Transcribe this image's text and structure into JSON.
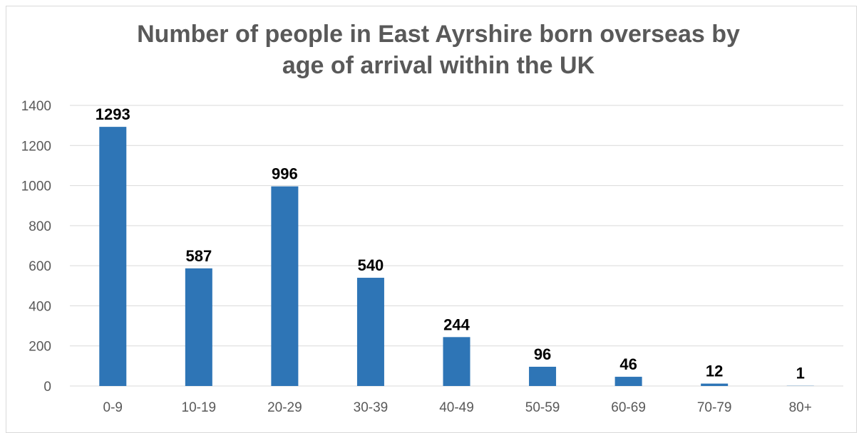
{
  "chart_data": {
    "type": "bar",
    "title_lines": [
      "Number of people in East Ayrshire born overseas by",
      "age of arrival within the UK"
    ],
    "categories": [
      "0-9",
      "10-19",
      "20-29",
      "30-39",
      "40-49",
      "50-59",
      "60-69",
      "70-79",
      "80+"
    ],
    "values": [
      1293,
      587,
      996,
      540,
      244,
      96,
      46,
      12,
      1
    ],
    "data_labels": [
      "1293",
      "587",
      "996",
      "540",
      "244",
      "96",
      "46",
      "12",
      "1"
    ],
    "y_ticks": [
      0,
      200,
      400,
      600,
      800,
      1000,
      1200,
      1400
    ],
    "y_tick_labels": [
      "0",
      "200",
      "400",
      "600",
      "800",
      "1000",
      "1200",
      "1400"
    ],
    "ylim": [
      0,
      1400
    ],
    "grid": true,
    "legend": "none",
    "bar_color": "#2e75b6",
    "gridline_color": "#d9d9d9",
    "axis_text_color": "#595959"
  }
}
